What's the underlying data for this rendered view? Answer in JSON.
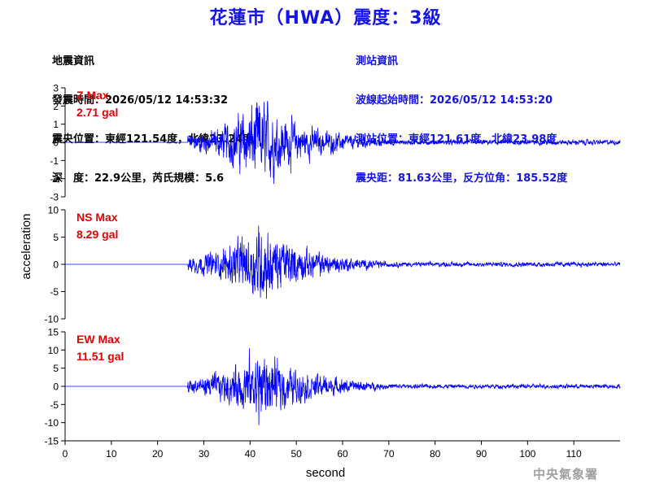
{
  "header": {
    "title": "花蓮市（HWA）震度：3級"
  },
  "earthquake_info": {
    "heading": "地震資訊",
    "origin_time": "發震時間：2026/05/12 14:53:32",
    "epicenter": "震央位置：東經121.54度，北緯23.24度",
    "depth_magnitude": "深　度：22.9公里，芮氏規模：5.6"
  },
  "station_info": {
    "heading": "測站資訊",
    "wave_start": "波線起始時間：2026/05/12 14:53:20",
    "station_location": "測站位置：東經121.61度，北緯23.98度",
    "distance_azimuth": "震央距：81.63公里，反方位角：185.52度"
  },
  "agency": "中央氣象署",
  "colors": {
    "trace": "#0000ff",
    "max_label": "#e60000",
    "title": "#1414e6"
  },
  "chart_data": {
    "type": "line",
    "xlabel": "second",
    "ylabel": "acceleration",
    "xlim": [
      0,
      120
    ],
    "xticks": [
      0,
      10,
      20,
      30,
      40,
      50,
      60,
      70,
      80,
      90,
      100,
      110
    ],
    "onset_seconds": 26.5,
    "peak_seconds": 42,
    "series": [
      {
        "name": "Z",
        "max_label": "Z Max",
        "max_value": "2.71 gal",
        "ylim": [
          -3,
          3
        ],
        "yticks": [
          3,
          2,
          1,
          0,
          -1,
          -2,
          -3
        ],
        "peak": 2.71
      },
      {
        "name": "NS",
        "max_label": "NS Max",
        "max_value": "8.29 gal",
        "ylim": [
          -10,
          10
        ],
        "yticks": [
          10,
          5,
          0,
          -5,
          -10
        ],
        "peak": 8.29
      },
      {
        "name": "EW",
        "max_label": "EW Max",
        "max_value": "11.51 gal",
        "ylim": [
          -15,
          15
        ],
        "yticks": [
          15,
          10,
          5,
          0,
          -5,
          -10,
          -15
        ],
        "peak": 11.51
      }
    ]
  }
}
